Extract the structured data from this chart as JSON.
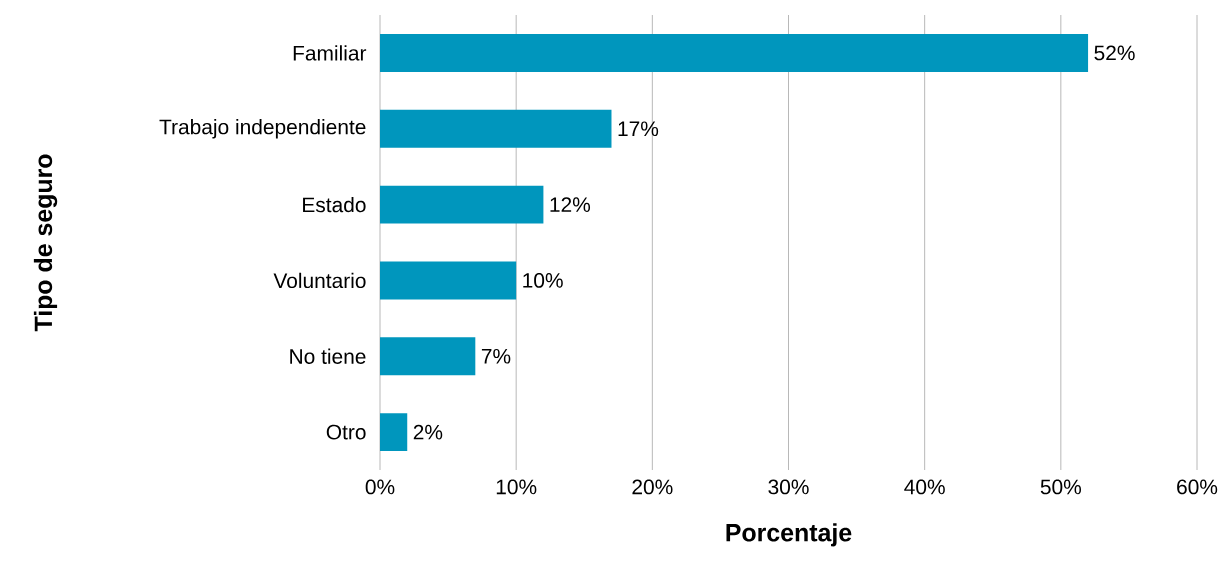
{
  "chart_data": {
    "type": "bar",
    "orientation": "horizontal",
    "xlabel": "Porcentaje",
    "ylabel": "Tipo de seguro",
    "categories": [
      "Familiar",
      "Trabajo independiente",
      "Estado",
      "Voluntario",
      "No tiene",
      "Otro"
    ],
    "values": [
      52,
      17,
      12,
      10,
      7,
      2
    ],
    "value_labels": [
      "52%",
      "17%",
      "12%",
      "10%",
      "7%",
      "2%"
    ],
    "color": "#0096bd",
    "xlim": [
      0,
      60
    ],
    "xticks": [
      {
        "value": 0,
        "label": "0%"
      },
      {
        "value": 10,
        "label": "10%"
      },
      {
        "value": 20,
        "label": "20%"
      },
      {
        "value": 30,
        "label": "30%"
      },
      {
        "value": 40,
        "label": "40%"
      },
      {
        "value": 50,
        "label": "50%"
      },
      {
        "value": 60,
        "label": "60%"
      }
    ],
    "grid": "x"
  }
}
